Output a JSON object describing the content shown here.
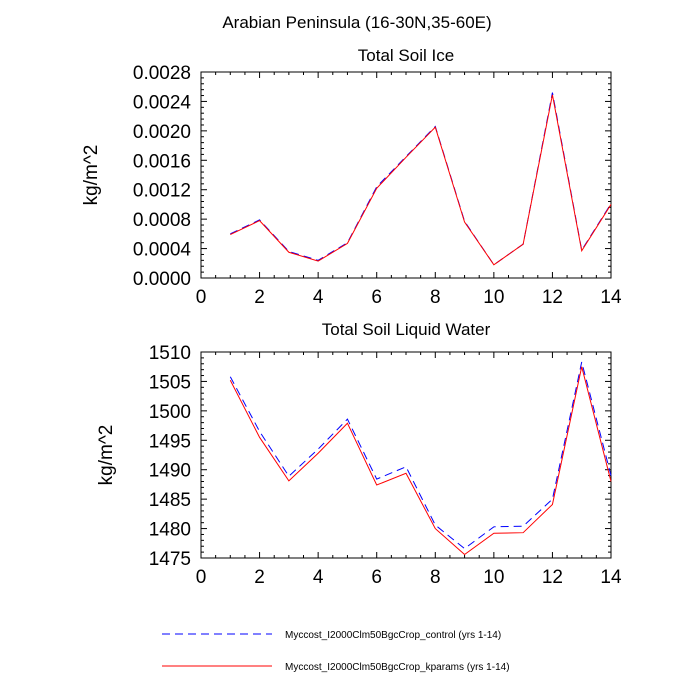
{
  "figure_title": "Arabian Peninsula (16-30N,35-60E)",
  "legend": {
    "control_label": "Myccost_I2000Clm50BgcCrop_control (yrs 1-14)",
    "kparams_label": "Myccost_I2000Clm50BgcCrop_kparams (yrs 1-14)"
  },
  "colors": {
    "control": "#0000ff",
    "kparams": "#ff0000"
  },
  "chart_data": [
    {
      "type": "line",
      "title": "Total Soil Ice",
      "xlabel": "",
      "ylabel": "kg/m^2",
      "xlim": [
        0,
        14
      ],
      "ylim": [
        0,
        0.0028
      ],
      "xticks": [
        "0",
        "2",
        "4",
        "6",
        "8",
        "10",
        "12",
        "14"
      ],
      "yticks": [
        "0.0000",
        "0.0004",
        "0.0008",
        "0.0012",
        "0.0016",
        "0.0020",
        "0.0024",
        "0.0028"
      ],
      "x": [
        1,
        2,
        3,
        4,
        5,
        6,
        7,
        8,
        9,
        10,
        11,
        12,
        13,
        14
      ],
      "series": [
        {
          "name": "Myccost_I2000Clm50BgcCrop_control (yrs 1-14)",
          "style": "dashed",
          "values": [
            0.0006,
            0.00079,
            0.00036,
            0.00024,
            0.00048,
            0.00124,
            0.00165,
            0.00206,
            0.00077,
            0.00018,
            0.00046,
            0.00252,
            0.00038,
            0.00101
          ]
        },
        {
          "name": "Myccost_I2000Clm50BgcCrop_kparams (yrs 1-14)",
          "style": "solid",
          "values": [
            0.00059,
            0.00078,
            0.00035,
            0.00023,
            0.00047,
            0.00122,
            0.00164,
            0.00205,
            0.00076,
            0.00018,
            0.00046,
            0.00249,
            0.00037,
            0.001
          ]
        }
      ]
    },
    {
      "type": "line",
      "title": "Total Soil Liquid Water",
      "xlabel": "",
      "ylabel": "kg/m^2",
      "xlim": [
        0,
        14
      ],
      "ylim": [
        1475,
        1510
      ],
      "xticks": [
        "0",
        "2",
        "4",
        "6",
        "8",
        "10",
        "12",
        "14"
      ],
      "yticks": [
        "1475",
        "1480",
        "1485",
        "1490",
        "1495",
        "1500",
        "1505",
        "1510"
      ],
      "x": [
        1,
        2,
        3,
        4,
        5,
        6,
        7,
        8,
        9,
        10,
        11,
        12,
        13,
        14
      ],
      "series": [
        {
          "name": "Myccost_I2000Clm50BgcCrop_control (yrs 1-14)",
          "style": "dashed",
          "values": [
            1505.8,
            1496.5,
            1488.9,
            1493.5,
            1498.6,
            1488.4,
            1490.5,
            1480.6,
            1476.6,
            1480.3,
            1480.4,
            1485.0,
            1508.3,
            1489.0
          ]
        },
        {
          "name": "Myccost_I2000Clm50BgcCrop_kparams (yrs 1-14)",
          "style": "solid",
          "values": [
            1505.2,
            1495.5,
            1488.1,
            1492.8,
            1497.9,
            1487.4,
            1489.4,
            1480.0,
            1475.6,
            1479.2,
            1479.3,
            1484.1,
            1507.5,
            1488.0
          ]
        }
      ]
    }
  ]
}
